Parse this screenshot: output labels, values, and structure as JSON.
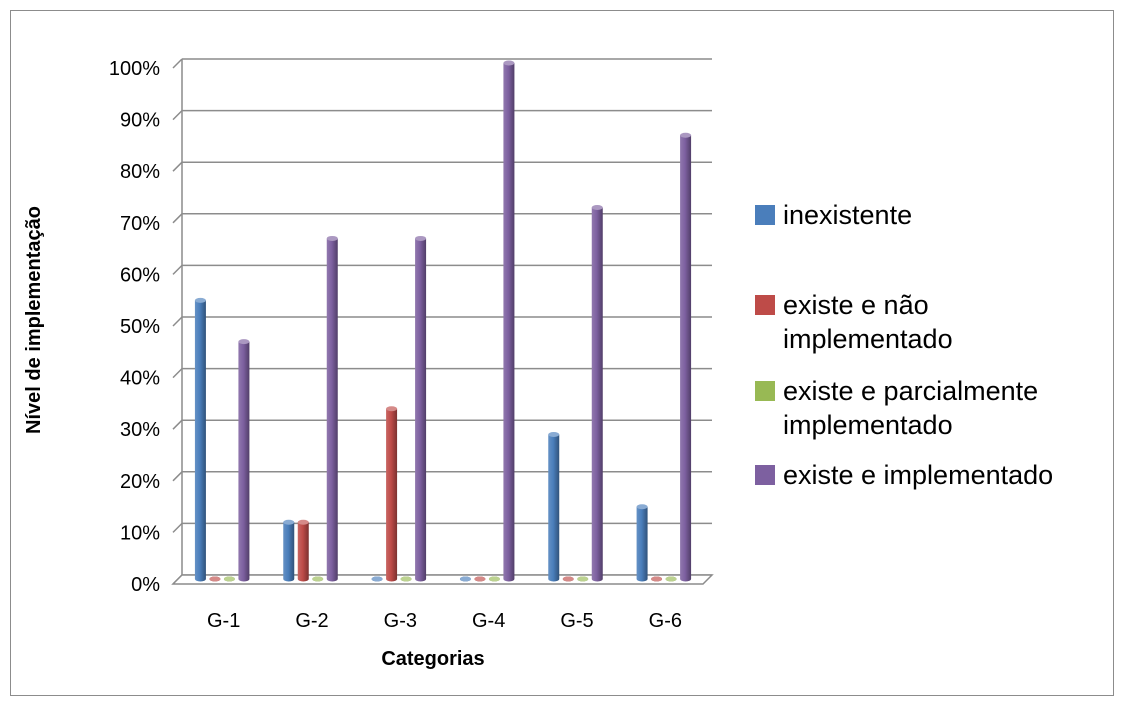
{
  "chart_data": {
    "type": "bar",
    "xlabel": "Categorias",
    "ylabel": "Nível de implementação",
    "categories": [
      "G-1",
      "G-2",
      "G-3",
      "G-4",
      "G-5",
      "G-6"
    ],
    "y_ticks": [
      "0%",
      "10%",
      "20%",
      "30%",
      "40%",
      "50%",
      "60%",
      "70%",
      "80%",
      "90%",
      "100%"
    ],
    "ylim": [
      0,
      100
    ],
    "grid": true,
    "legend_position": "right",
    "series": [
      {
        "name": "inexistente",
        "color": "#4a7ebb",
        "values": [
          54,
          11,
          0,
          0,
          28,
          14
        ]
      },
      {
        "name": "existe e não implementado",
        "color": "#be4b48",
        "values": [
          0,
          11,
          33,
          0,
          0,
          0
        ]
      },
      {
        "name": "existe e parcialmente implementado",
        "color": "#98b954",
        "values": [
          0,
          0,
          0,
          0,
          0,
          0
        ]
      },
      {
        "name": "existe e implementado",
        "color": "#7d60a0",
        "values": [
          46,
          66,
          66,
          100,
          72,
          86
        ]
      }
    ]
  }
}
